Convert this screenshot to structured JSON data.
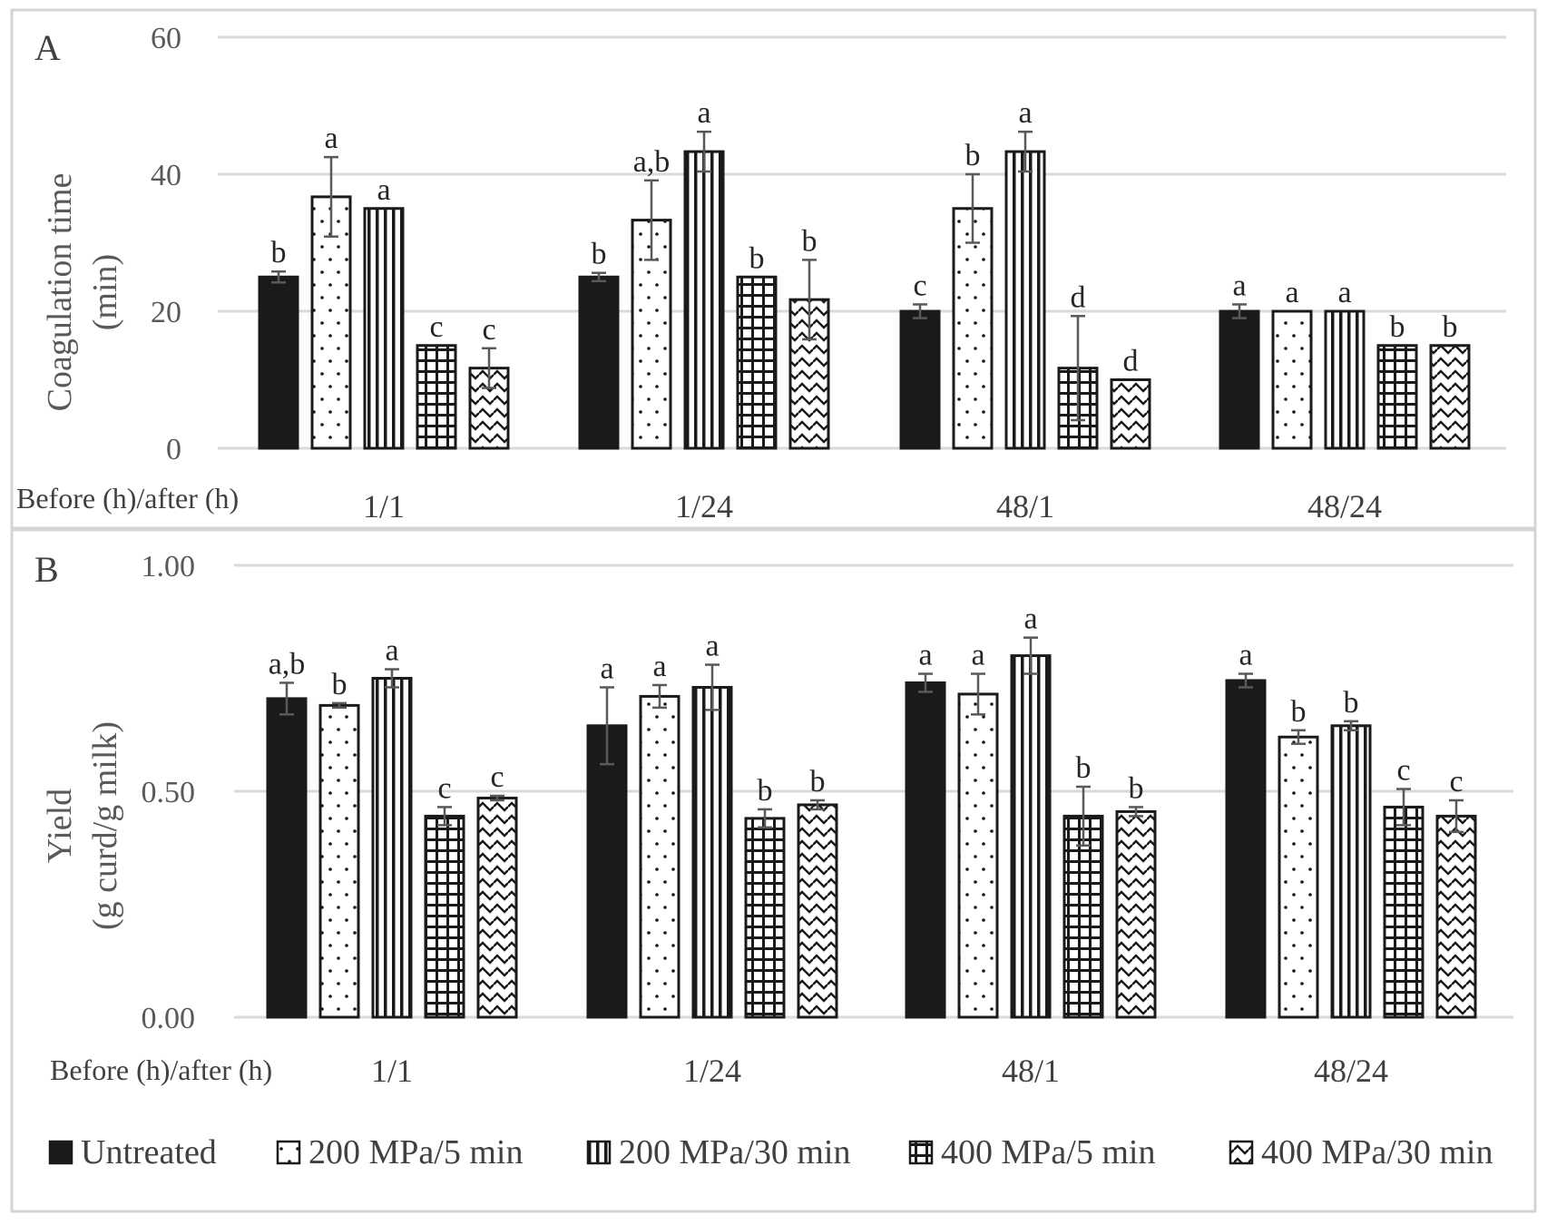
{
  "legend": [
    {
      "name": "Untreated",
      "pattern": "solid"
    },
    {
      "name": "200 MPa/5 min",
      "pattern": "dots"
    },
    {
      "name": "200 MPa/30 min",
      "pattern": "vlines"
    },
    {
      "name": "400 MPa/5 min",
      "pattern": "grid"
    },
    {
      "name": "400 MPa/30 min",
      "pattern": "waves"
    }
  ],
  "colors": {
    "bar_fill": "#1a1a1a",
    "grid": "#d9d9d9",
    "frame": "#d4d4d4",
    "error_bar": "#595959",
    "text": "#404040"
  },
  "chart_data": [
    {
      "panel": "A",
      "type": "bar",
      "ylabel_line1": "Coagulation time",
      "ylabel_line2": "(min)",
      "xtitle": "Before (h)/after (h)",
      "categories": [
        "1/1",
        "1/24",
        "48/1",
        "48/24"
      ],
      "ylim": [
        0,
        60
      ],
      "yticks": [
        "0",
        "20",
        "40",
        "60"
      ],
      "ytick_values": [
        0,
        20,
        40,
        60
      ],
      "grid": true,
      "series": [
        {
          "name": "Untreated",
          "values": [
            25,
            25,
            20,
            20
          ],
          "errors": [
            0.8,
            0.6,
            1.0,
            1.0
          ],
          "letters": [
            "b",
            "b",
            "c",
            "a"
          ]
        },
        {
          "name": "200 MPa/5 min",
          "values": [
            36.7,
            33.3,
            35,
            20
          ],
          "errors": [
            5.8,
            5.8,
            5.0,
            0
          ],
          "letters": [
            "a",
            "a,b",
            "b",
            "a"
          ]
        },
        {
          "name": "200 MPa/30 min",
          "values": [
            35,
            43.3,
            43.3,
            20
          ],
          "errors": [
            0,
            2.9,
            2.9,
            0
          ],
          "letters": [
            "a",
            "a",
            "a",
            "a"
          ]
        },
        {
          "name": "400 MPa/5 min",
          "values": [
            15,
            25,
            11.7,
            15
          ],
          "errors": [
            0,
            0,
            7.6,
            0
          ],
          "letters": [
            "c",
            "b",
            "d",
            "b"
          ]
        },
        {
          "name": "400 MPa/30 min",
          "values": [
            11.7,
            21.7,
            10,
            15
          ],
          "errors": [
            2.9,
            5.8,
            0,
            0
          ],
          "letters": [
            "c",
            "b",
            "d",
            "b"
          ]
        }
      ]
    },
    {
      "panel": "B",
      "type": "bar",
      "ylabel_line1": "Yield",
      "ylabel_line2": "(g curd/g milk)",
      "xtitle": "Before (h)/after (h)",
      "categories": [
        "1/1",
        "1/24",
        "48/1",
        "48/24"
      ],
      "ylim": [
        0,
        1
      ],
      "yticks": [
        "0.00",
        "0.50",
        "1.00"
      ],
      "ytick_values": [
        0,
        0.5,
        1
      ],
      "grid": true,
      "series": [
        {
          "name": "Untreated",
          "values": [
            0.705,
            0.645,
            0.74,
            0.745
          ],
          "errors": [
            0.035,
            0.085,
            0.02,
            0.015
          ],
          "letters": [
            "a,b",
            "a",
            "a",
            "a"
          ]
        },
        {
          "name": "200 MPa/5 min",
          "values": [
            0.69,
            0.71,
            0.715,
            0.62
          ],
          "errors": [
            0.005,
            0.025,
            0.045,
            0.015
          ],
          "letters": [
            "b",
            "a",
            "a",
            "b"
          ]
        },
        {
          "name": "200 MPa/30 min",
          "values": [
            0.75,
            0.73,
            0.8,
            0.645
          ],
          "errors": [
            0.02,
            0.05,
            0.04,
            0.01
          ],
          "letters": [
            "a",
            "a",
            "a",
            "b"
          ]
        },
        {
          "name": "400 MPa/5 min",
          "values": [
            0.445,
            0.44,
            0.445,
            0.465
          ],
          "errors": [
            0.02,
            0.02,
            0.065,
            0.04
          ],
          "letters": [
            "c",
            "b",
            "b",
            "c"
          ]
        },
        {
          "name": "400 MPa/30 min",
          "values": [
            0.485,
            0.47,
            0.455,
            0.445
          ],
          "errors": [
            0.005,
            0.01,
            0.01,
            0.035
          ],
          "letters": [
            "c",
            "b",
            "b",
            "c"
          ]
        }
      ]
    }
  ]
}
